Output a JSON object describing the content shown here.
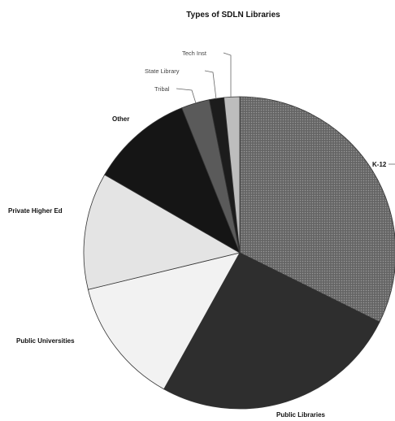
{
  "chart_data": {
    "type": "pie",
    "title": "Types of SDLN Libraries",
    "slices": [
      {
        "label": "K-12",
        "value": 32.0,
        "color": "#6e6e6e",
        "pattern": "stipple"
      },
      {
        "label": "Public Libraries",
        "value": 25.5,
        "color": "#2e2e2e"
      },
      {
        "label": "Public Universities",
        "value": 13.0,
        "color": "#f2f2f2"
      },
      {
        "label": "Private Higher Ed",
        "value": 12.0,
        "color": "#e4e4e4"
      },
      {
        "label": "Other",
        "value": 10.5,
        "color": "#151515"
      },
      {
        "label": "Tribal",
        "value": 2.9,
        "color": "#5a5a5a"
      },
      {
        "label": "State Library",
        "value": 1.5,
        "color": "#1c1c1c"
      },
      {
        "label": "Tech Inst",
        "value": 1.6,
        "color": "#bdbdbd"
      }
    ],
    "start_angle_deg": 0,
    "direction": "clockwise",
    "legend": "none"
  }
}
